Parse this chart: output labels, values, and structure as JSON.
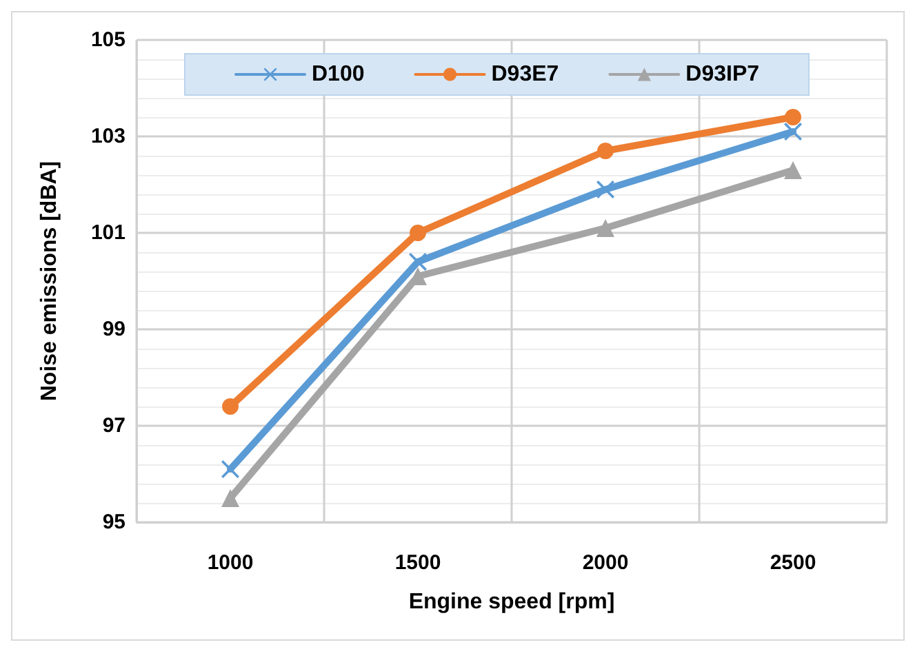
{
  "chart_data": {
    "type": "line",
    "xlabel": "Engine speed [rpm]",
    "ylabel": "Noise emissions [dBA]",
    "categories": [
      "1000",
      "1500",
      "2000",
      "2500"
    ],
    "ylim": [
      95,
      105
    ],
    "yticks": [
      95,
      97,
      99,
      101,
      103,
      105
    ],
    "grid": true,
    "legend": "top",
    "line_style": "solid",
    "series": [
      {
        "name": "D100",
        "color": "#5b9bd5",
        "marker": "cross",
        "values": [
          96.1,
          100.4,
          101.9,
          103.1
        ]
      },
      {
        "name": "D93E7",
        "color": "#ed7d31",
        "marker": "circle",
        "values": [
          97.4,
          101.0,
          102.7,
          103.4
        ]
      },
      {
        "name": "D93IP7",
        "color": "#a5a5a5",
        "marker": "triangle",
        "values": [
          95.5,
          100.1,
          101.1,
          102.3
        ]
      }
    ]
  }
}
